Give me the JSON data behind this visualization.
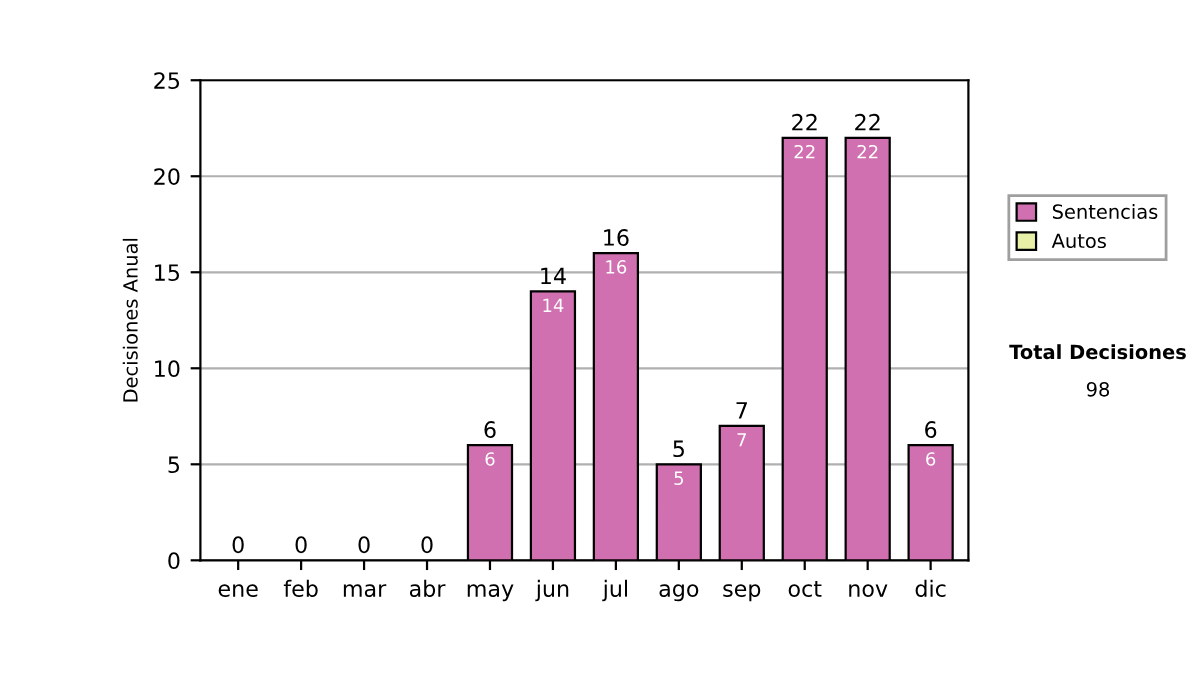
{
  "chart_data": {
    "type": "bar",
    "stacked": true,
    "ylabel": "Decisiones Anual",
    "categories": [
      "ene",
      "feb",
      "mar",
      "abr",
      "may",
      "jun",
      "jul",
      "ago",
      "sep",
      "oct",
      "nov",
      "dic"
    ],
    "series": [
      {
        "name": "Sentencias",
        "color": "#d070b0",
        "values": [
          0,
          0,
          0,
          0,
          6,
          14,
          16,
          5,
          7,
          22,
          22,
          6
        ],
        "value_labels": [
          null,
          null,
          null,
          null,
          "6",
          "14",
          "16",
          "5",
          "7",
          "22",
          "22",
          "6"
        ]
      },
      {
        "name": "Autos",
        "color": "#e8f0a8",
        "values": [
          0,
          0,
          0,
          0,
          0,
          0,
          0,
          0,
          0,
          0,
          0,
          0
        ]
      }
    ],
    "totals": [
      "0",
      "0",
      "0",
      "0",
      "6",
      "14",
      "16",
      "5",
      "7",
      "22",
      "22",
      "6"
    ],
    "ylim": [
      0,
      25
    ],
    "yticks": [
      0,
      5,
      10,
      15,
      20,
      25
    ],
    "grid": "y",
    "legend": "right",
    "annotations": [
      "Total Decisiones",
      "98"
    ]
  }
}
